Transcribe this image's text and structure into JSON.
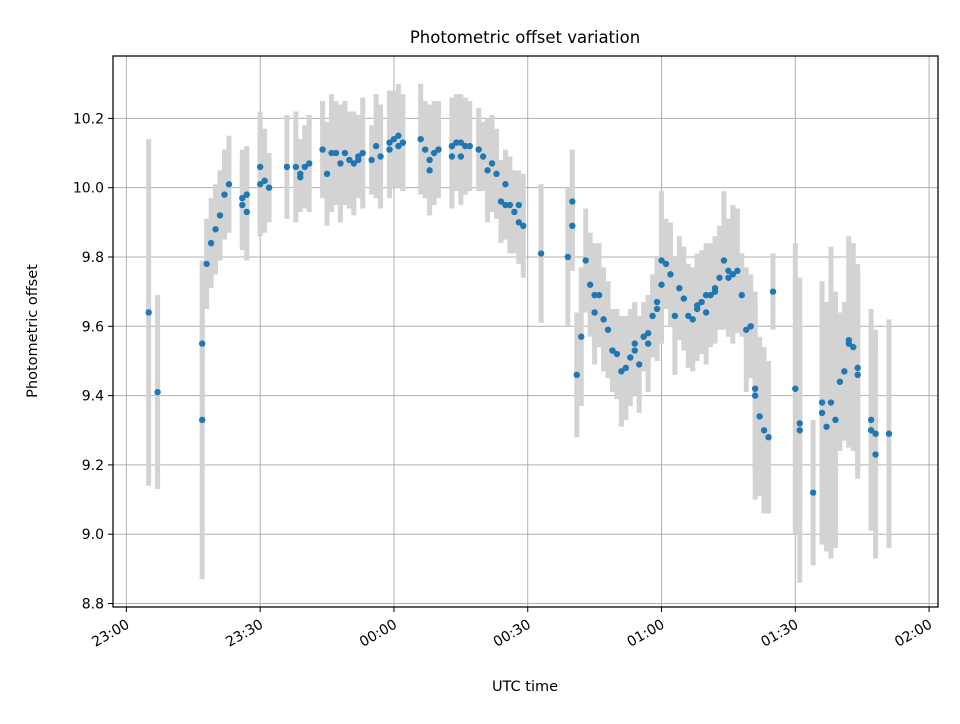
{
  "chart_data": {
    "type": "scatter",
    "title": "Photometric offset variation",
    "xlabel": "UTC time",
    "ylabel": "Photometric offset",
    "grid": true,
    "xlim": [
      "22:57",
      "02:02"
    ],
    "ylim": [
      8.79,
      10.38
    ],
    "x_ticks": [
      "23:00",
      "23:30",
      "00:00",
      "00:30",
      "01:00",
      "01:30",
      "02:00"
    ],
    "y_ticks": [
      "8.8",
      "9.0",
      "9.2",
      "9.4",
      "9.6",
      "9.8",
      "10.0",
      "10.2"
    ],
    "colors": {
      "marker": "#1f77b4",
      "errorbar": "#d3d3d3"
    },
    "series": [
      {
        "x": [
          "23:05",
          "23:07",
          "23:17",
          "23:17",
          "23:18",
          "23:19",
          "23:20",
          "23:21",
          "23:22",
          "23:23",
          "23:26",
          "23:26",
          "23:27",
          "23:27",
          "23:30",
          "23:30",
          "23:31",
          "23:32",
          "23:36",
          "23:38",
          "23:39",
          "23:39",
          "23:40",
          "23:41",
          "23:44",
          "23:45",
          "23:46",
          "23:47",
          "23:48",
          "23:49",
          "23:50",
          "23:51",
          "23:52",
          "23:52",
          "23:53",
          "23:55",
          "23:56",
          "23:57",
          "23:59",
          "23:59",
          "00:00",
          "00:01",
          "00:01",
          "00:02",
          "00:06",
          "00:07",
          "00:08",
          "00:08",
          "00:09",
          "00:10",
          "00:13",
          "00:13",
          "00:14",
          "00:15",
          "00:15",
          "00:16",
          "00:17",
          "00:19",
          "00:20",
          "00:21",
          "00:22",
          "00:23",
          "00:24",
          "00:25",
          "00:25",
          "00:26",
          "00:27",
          "00:28",
          "00:28",
          "00:29",
          "00:33",
          "00:39",
          "00:40",
          "00:40",
          "00:41",
          "00:42",
          "00:43",
          "00:44",
          "00:45",
          "00:45",
          "00:46",
          "00:47",
          "00:48",
          "00:49",
          "00:50",
          "00:51",
          "00:52",
          "00:53",
          "00:54",
          "00:54",
          "00:55",
          "00:56",
          "00:57",
          "00:57",
          "00:58",
          "00:59",
          "00:59",
          "01:00",
          "01:00",
          "01:01",
          "01:02",
          "01:03",
          "01:04",
          "01:05",
          "01:06",
          "01:07",
          "01:08",
          "01:08",
          "01:09",
          "01:10",
          "01:10",
          "01:11",
          "01:12",
          "01:12",
          "01:13",
          "01:14",
          "01:15",
          "01:15",
          "01:16",
          "01:17",
          "01:18",
          "01:19",
          "01:20",
          "01:21",
          "01:21",
          "01:22",
          "01:23",
          "01:24",
          "01:25",
          "01:30",
          "01:31",
          "01:31",
          "01:34",
          "01:36",
          "01:36",
          "01:37",
          "01:38",
          "01:39",
          "01:40",
          "01:41",
          "01:42",
          "01:42",
          "01:43",
          "01:44",
          "01:44",
          "01:47",
          "01:47",
          "01:48",
          "01:48",
          "01:51"
        ],
        "y": [
          9.64,
          9.41,
          9.33,
          9.55,
          9.78,
          9.84,
          9.88,
          9.92,
          9.98,
          10.01,
          9.97,
          9.95,
          9.93,
          9.98,
          10.06,
          10.01,
          10.02,
          10.0,
          10.06,
          10.06,
          10.03,
          10.04,
          10.06,
          10.07,
          10.11,
          10.04,
          10.1,
          10.1,
          10.07,
          10.1,
          10.08,
          10.07,
          10.08,
          10.09,
          10.1,
          10.08,
          10.12,
          10.09,
          10.11,
          10.13,
          10.14,
          10.12,
          10.15,
          10.13,
          10.14,
          10.11,
          10.08,
          10.05,
          10.1,
          10.11,
          10.09,
          10.12,
          10.13,
          10.09,
          10.13,
          10.12,
          10.12,
          10.11,
          10.09,
          10.05,
          10.07,
          10.04,
          9.96,
          9.95,
          10.01,
          9.95,
          9.93,
          9.95,
          9.9,
          9.89,
          9.81,
          9.8,
          9.96,
          9.89,
          9.46,
          9.57,
          9.79,
          9.72,
          9.69,
          9.64,
          9.69,
          9.62,
          9.59,
          9.53,
          9.52,
          9.47,
          9.48,
          9.51,
          9.55,
          9.53,
          9.49,
          9.57,
          9.55,
          9.58,
          9.63,
          9.67,
          9.65,
          9.72,
          9.79,
          9.78,
          9.75,
          9.63,
          9.71,
          9.68,
          9.63,
          9.62,
          9.65,
          9.66,
          9.67,
          9.69,
          9.64,
          9.69,
          9.7,
          9.71,
          9.74,
          9.79,
          9.76,
          9.74,
          9.75,
          9.76,
          9.69,
          9.59,
          9.6,
          9.4,
          9.42,
          9.34,
          9.3,
          9.28,
          9.7,
          9.42,
          9.3,
          9.32,
          9.12,
          9.38,
          9.35,
          9.31,
          9.38,
          9.33,
          9.44,
          9.47,
          9.56,
          9.55,
          9.54,
          9.48,
          9.46,
          9.3,
          9.33,
          9.29,
          9.23,
          9.29
        ],
        "yerr": [
          0.5,
          0.28,
          0.46,
          0.23,
          0.13,
          0.13,
          0.13,
          0.13,
          0.13,
          0.14,
          0.14,
          0.13,
          0.14,
          0.14,
          0.16,
          0.15,
          0.15,
          0.1,
          0.15,
          0.16,
          0.1,
          0.1,
          0.12,
          0.14,
          0.14,
          0.15,
          0.17,
          0.15,
          0.17,
          0.15,
          0.14,
          0.15,
          0.1,
          0.12,
          0.16,
          0.1,
          0.15,
          0.15,
          0.14,
          0.15,
          0.14,
          0.1,
          0.15,
          0.14,
          0.16,
          0.14,
          0.16,
          0.1,
          0.15,
          0.14,
          0.15,
          0.14,
          0.14,
          0.14,
          0.14,
          0.14,
          0.13,
          0.12,
          0.1,
          0.15,
          0.14,
          0.13,
          0.12,
          0.1,
          0.1,
          0.14,
          0.12,
          0.1,
          0.12,
          0.15,
          0.2,
          0.2,
          0.15,
          0.13,
          0.18,
          0.2,
          0.15,
          0.15,
          0.15,
          0.15,
          0.15,
          0.15,
          0.14,
          0.12,
          0.13,
          0.16,
          0.15,
          0.14,
          0.12,
          0.13,
          0.14,
          0.1,
          0.14,
          0.11,
          0.12,
          0.13,
          0.15,
          0.17,
          0.2,
          0.13,
          0.15,
          0.17,
          0.15,
          0.15,
          0.15,
          0.15,
          0.15,
          0.15,
          0.15,
          0.15,
          0.15,
          0.15,
          0.15,
          0.15,
          0.15,
          0.2,
          0.15,
          0.17,
          0.2,
          0.18,
          0.12,
          0.18,
          0.15,
          0.3,
          0.25,
          0.23,
          0.24,
          0.22,
          0.11,
          0.42,
          0.44,
          0.28,
          0.21,
          0.25,
          0.38,
          0.36,
          0.45,
          0.37,
          0.2,
          0.2,
          0.3,
          0.3,
          0.3,
          0.3,
          0.3,
          0.28,
          0.32,
          0.3,
          0.3,
          0.33
        ]
      }
    ]
  }
}
